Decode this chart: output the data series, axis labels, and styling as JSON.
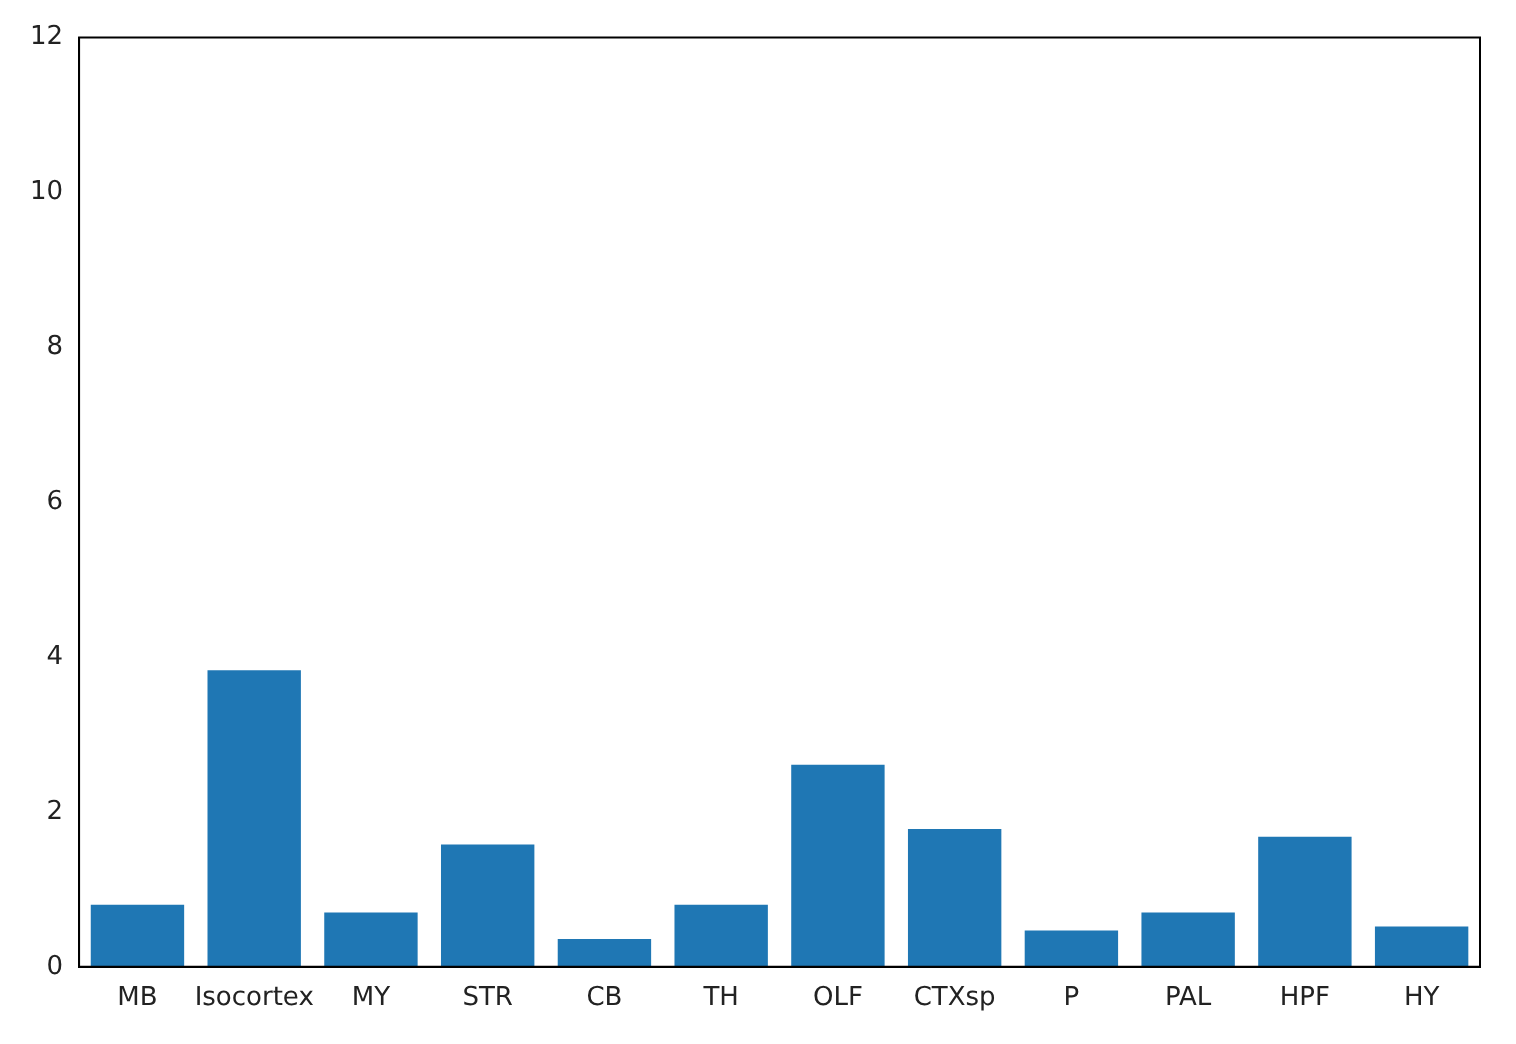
{
  "chart_data": {
    "type": "bar",
    "categories": [
      "MB",
      "Isocortex",
      "MY",
      "STR",
      "CB",
      "TH",
      "OLF",
      "CTXsp",
      "P",
      "PAL",
      "HPF",
      "HY"
    ],
    "values": [
      0.8,
      3.83,
      0.7,
      1.58,
      0.36,
      0.8,
      2.61,
      1.78,
      0.47,
      0.7,
      1.68,
      0.52
    ],
    "color": "#1f77b4",
    "ylim": [
      0,
      12
    ],
    "yticks": [
      0,
      2,
      4,
      6,
      8,
      10,
      12
    ],
    "grid": false,
    "legend": false
  }
}
